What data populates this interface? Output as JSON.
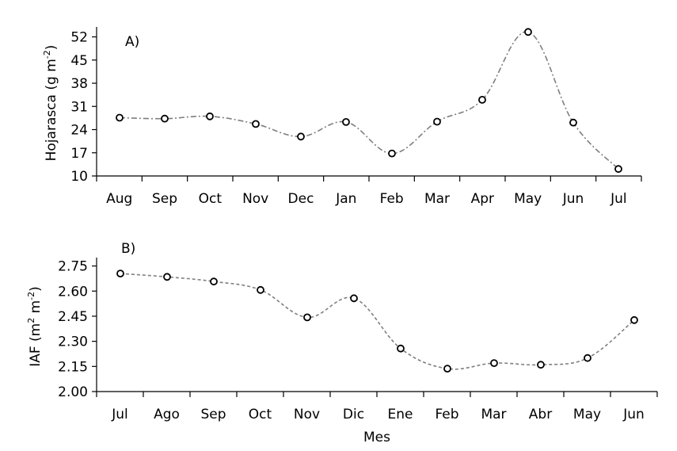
{
  "chart_data": [
    {
      "type": "line",
      "panel_label": "A)",
      "categories": [
        "Aug",
        "Sep",
        "Oct",
        "Nov",
        "Dec",
        "Jan",
        "Feb",
        "Mar",
        "Apr",
        "May",
        "Jun",
        "Jul"
      ],
      "series": [
        {
          "values": [
            27.6,
            27.3,
            28.0,
            25.7,
            21.9,
            26.3,
            16.8,
            26.4,
            33.0,
            53.5,
            26.1,
            12.1
          ]
        }
      ],
      "ylabel": {
        "main": "Hojarasca (g m",
        "sup": "-2",
        "close": ")"
      },
      "yticks": [
        "10",
        "17",
        "24",
        "31",
        "38",
        "45",
        "52"
      ],
      "ylim": [
        10,
        55
      ],
      "line_style": "dash-dot",
      "line_color": "#7f7f7f",
      "marker": "open-circle",
      "grid": false
    },
    {
      "type": "line",
      "panel_label": "B)",
      "categories": [
        "Jul",
        "Ago",
        "Sep",
        "Oct",
        "Nov",
        "Dic",
        "Ene",
        "Feb",
        "Mar",
        "Abr",
        "May",
        "Jun"
      ],
      "series": [
        {
          "values": [
            2.705,
            2.685,
            2.657,
            2.607,
            2.443,
            2.557,
            2.257,
            2.137,
            2.17,
            2.16,
            2.2,
            2.427
          ]
        }
      ],
      "ylabel": {
        "main": "IAF (m",
        "sup1": "2",
        "mid": " m",
        "sup2": "-2",
        "close": ")"
      },
      "yticks": [
        "2.00",
        "2.15",
        "2.30",
        "2.45",
        "2.60",
        "2.75"
      ],
      "ylim": [
        2.0,
        2.8
      ],
      "xlabel": "Mes",
      "line_style": "dashed",
      "line_color": "#7f7f7f",
      "marker": "open-circle",
      "grid": false
    }
  ]
}
